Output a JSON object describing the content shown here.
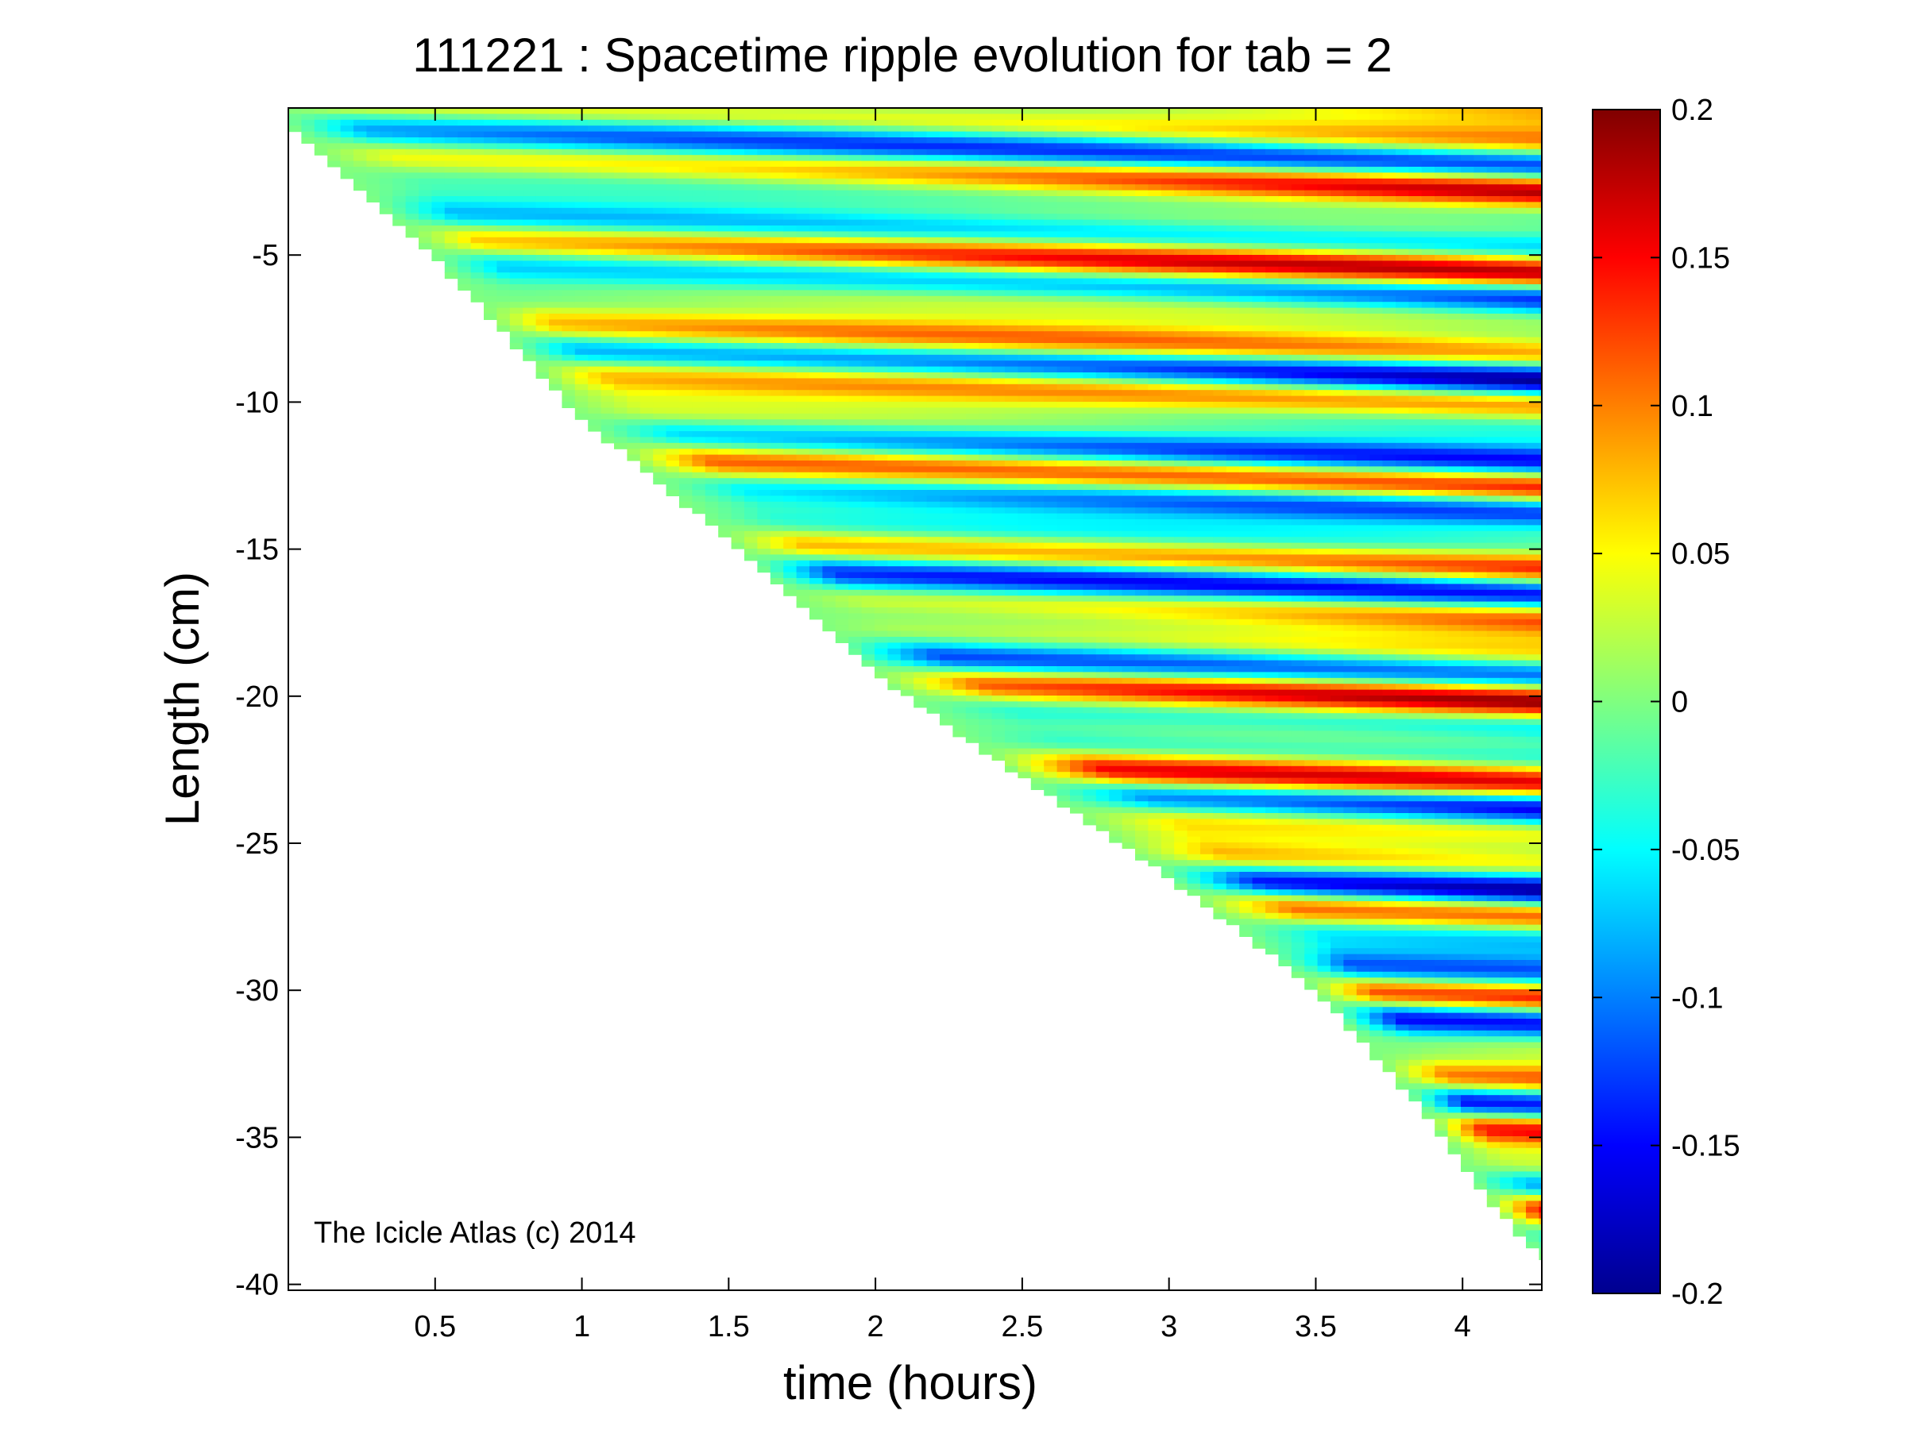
{
  "chart_data": {
    "type": "heatmap",
    "title": "111221 : Spacetime ripple evolution for tab = 2",
    "xlabel": "time (hours)",
    "ylabel": "Length (cm)",
    "xlim": [
      0,
      4.27
    ],
    "ylim": [
      -40.2,
      0
    ],
    "xticks": [
      0.5,
      1,
      1.5,
      2,
      2.5,
      3,
      3.5,
      4
    ],
    "yticks": [
      -5,
      -10,
      -15,
      -20,
      -25,
      -30,
      -35,
      -40
    ],
    "colorbar": {
      "range": [
        -0.2,
        0.2
      ],
      "ticks": [
        0.2,
        0.15,
        0.1,
        0.05,
        0,
        -0.05,
        -0.1,
        -0.15,
        -0.2
      ],
      "colormap": "jet"
    },
    "boundary": {
      "description": "icicle tip length vs time",
      "t": [
        0.0,
        0.5,
        1.0,
        1.5,
        2.0,
        2.5,
        3.0,
        3.5,
        3.9,
        4.1,
        4.27
      ],
      "length": [
        -0.6,
        -5.1,
        -10.6,
        -14.7,
        -19.3,
        -22.8,
        -26.2,
        -30.0,
        -34.5,
        -37.3,
        -39.2
      ]
    },
    "annotation": "The Icicle Atlas (c) 2014",
    "grid": false,
    "legend": "colorbar-right"
  }
}
